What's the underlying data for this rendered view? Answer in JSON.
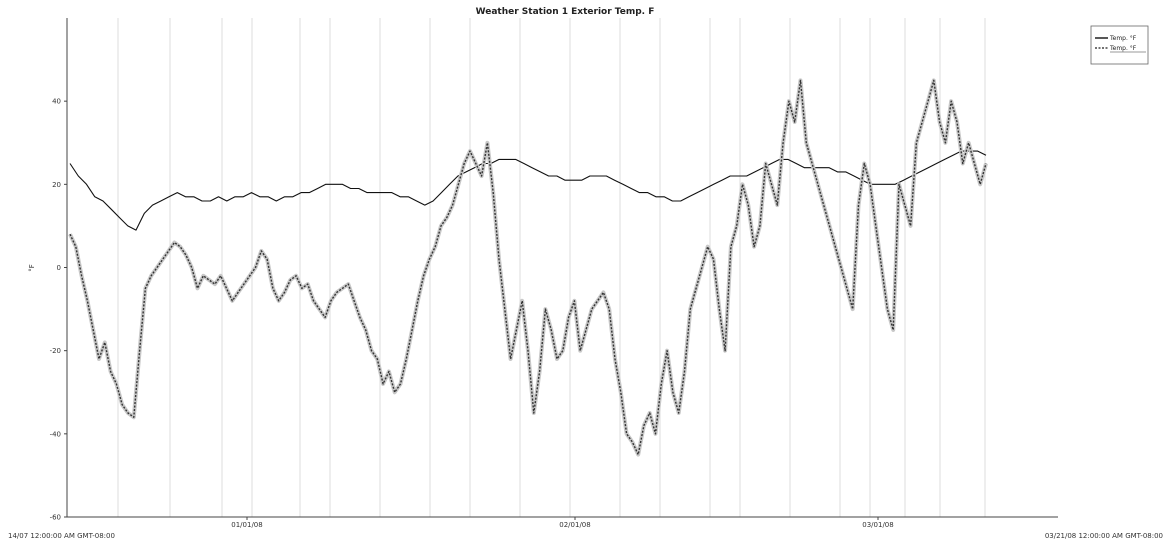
{
  "chart_data": {
    "type": "line",
    "title": "Weather Station 1 Exterior Temp. F",
    "ylabel": "°F",
    "xlabel": "",
    "ylim": [
      -60,
      60
    ],
    "yticks": [
      -60,
      -40,
      -20,
      0,
      20,
      40
    ],
    "x_range_labels": {
      "start": "14/07 12:00:00 AM GMT-08:00",
      "end": "03/21/08 12:00:00 AM GMT-08:00"
    },
    "x_tick_labels": [
      "01/01/08",
      "02/01/08",
      "03/01/08"
    ],
    "grid": {
      "vertical": true,
      "horizontal": false
    },
    "legend": {
      "placement": "top-right",
      "entries": [
        "Temp. °F",
        "Temp. °F"
      ]
    },
    "series": [
      {
        "name": "Temp. °F",
        "style": "solid",
        "color": "#111111",
        "values": [
          25,
          22,
          20,
          17,
          16,
          14,
          12,
          10,
          9,
          13,
          15,
          16,
          17,
          18,
          17,
          17,
          16,
          16,
          17,
          16,
          17,
          17,
          18,
          17,
          17,
          16,
          17,
          17,
          18,
          18,
          19,
          20,
          20,
          20,
          19,
          19,
          18,
          18,
          18,
          18,
          17,
          17,
          16,
          15,
          16,
          18,
          20,
          22,
          23,
          24,
          25,
          25,
          26,
          26,
          26,
          25,
          24,
          23,
          22,
          22,
          21,
          21,
          21,
          22,
          22,
          22,
          21,
          20,
          19,
          18,
          18,
          17,
          17,
          16,
          16,
          17,
          18,
          19,
          20,
          21,
          22,
          22,
          22,
          23,
          24,
          25,
          26,
          26,
          25,
          24,
          24,
          24,
          24,
          23,
          23,
          22,
          21,
          20,
          20,
          20,
          20,
          21,
          22,
          23,
          24,
          25,
          26,
          27,
          28,
          28,
          28,
          27
        ]
      },
      {
        "name": "Temp. °F",
        "style": "dashed",
        "color": "#777777",
        "values": [
          8,
          5,
          -2,
          -8,
          -15,
          -22,
          -18,
          -25,
          -28,
          -33,
          -35,
          -36,
          -20,
          -5,
          -2,
          0,
          2,
          4,
          6,
          5,
          3,
          0,
          -5,
          -2,
          -3,
          -4,
          -2,
          -5,
          -8,
          -6,
          -4,
          -2,
          0,
          4,
          2,
          -5,
          -8,
          -6,
          -3,
          -2,
          -5,
          -4,
          -8,
          -10,
          -12,
          -8,
          -6,
          -5,
          -4,
          -8,
          -12,
          -15,
          -20,
          -22,
          -28,
          -25,
          -30,
          -28,
          -22,
          -15,
          -8,
          -2,
          2,
          5,
          10,
          12,
          15,
          20,
          25,
          28,
          25,
          22,
          30,
          18,
          2,
          -10,
          -22,
          -15,
          -8,
          -20,
          -35,
          -25,
          -10,
          -15,
          -22,
          -20,
          -12,
          -8,
          -20,
          -15,
          -10,
          -8,
          -6,
          -10,
          -22,
          -30,
          -40,
          -42,
          -45,
          -38,
          -35,
          -40,
          -28,
          -20,
          -30,
          -35,
          -25,
          -10,
          -5,
          0,
          5,
          2,
          -10,
          -20,
          5,
          10,
          20,
          15,
          5,
          10,
          25,
          20,
          15,
          30,
          40,
          35,
          45,
          30,
          25,
          20,
          15,
          10,
          5,
          0,
          -5,
          -10,
          15,
          25,
          20,
          10,
          0,
          -10,
          -15,
          20,
          15,
          10,
          30,
          35,
          40,
          45,
          35,
          30,
          40,
          35,
          25,
          30,
          25,
          20,
          25
        ]
      }
    ]
  }
}
